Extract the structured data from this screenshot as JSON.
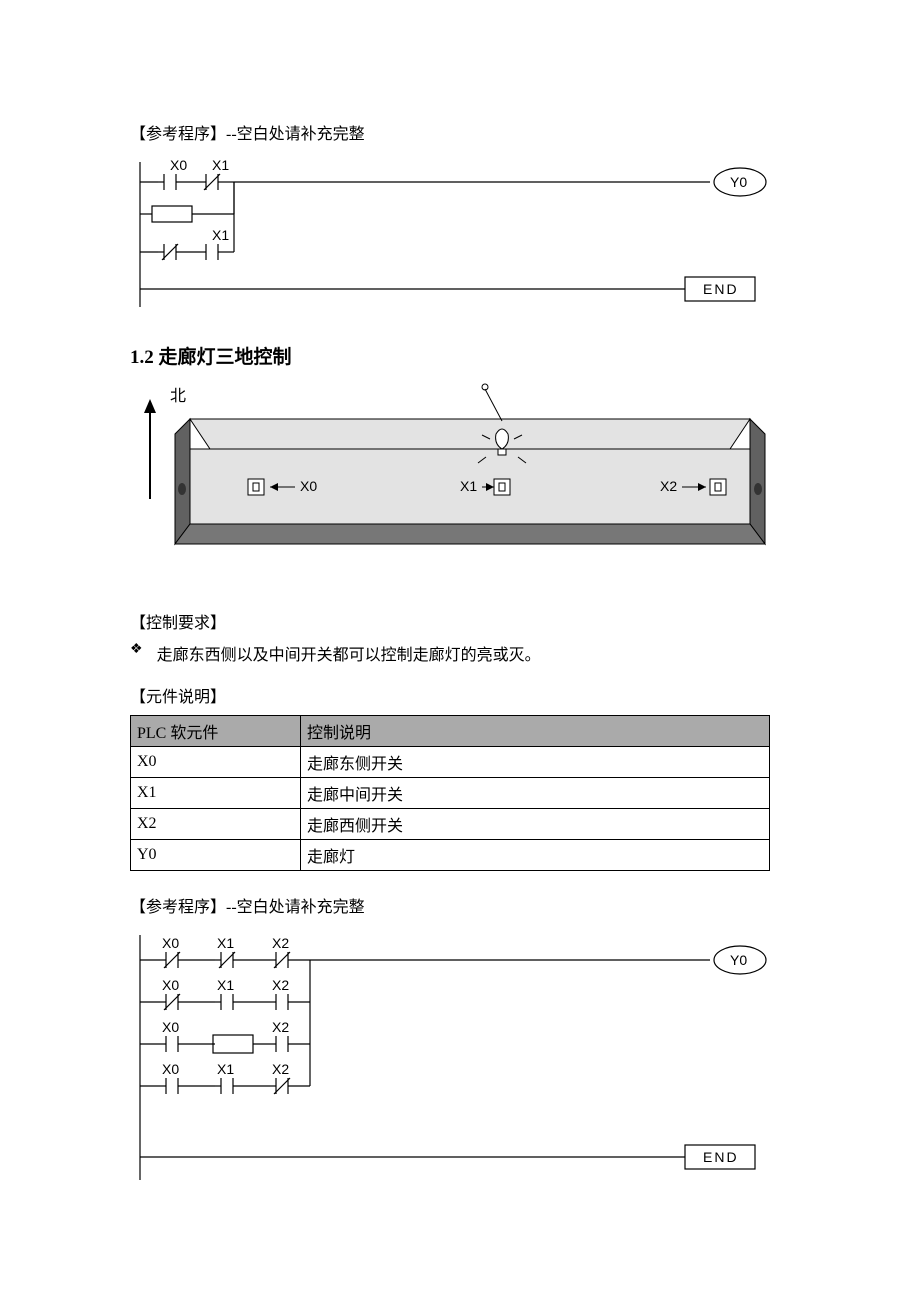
{
  "section1": {
    "program_label": "【参考程序】--空白处请补充完整",
    "ladder": {
      "contacts": [
        "X0",
        "X1",
        "X1"
      ],
      "output": "Y0",
      "end": "END"
    }
  },
  "section2": {
    "heading": "1.2 走廊灯三地控制",
    "north_label": "北",
    "switches": [
      "X0",
      "X1",
      "X2"
    ],
    "control_req_label": "【控制要求】",
    "control_req_text": "走廊东西侧以及中间开关都可以控制走廊灯的亮或灭。",
    "component_label": "【元件说明】",
    "table": {
      "headers": [
        "PLC 软元件",
        "控制说明"
      ],
      "rows": [
        [
          "X0",
          "走廊东侧开关"
        ],
        [
          "X1",
          "走廊中间开关"
        ],
        [
          "X2",
          "走廊西侧开关"
        ],
        [
          "Y0",
          "走廊灯"
        ]
      ]
    },
    "program_label": "【参考程序】--空白处请补充完整",
    "ladder": {
      "rows": [
        [
          {
            "t": "X0",
            "nc": true
          },
          {
            "t": "X1",
            "nc": true
          },
          {
            "t": "X2",
            "nc": true
          }
        ],
        [
          {
            "t": "X0",
            "nc": true
          },
          {
            "t": "X1",
            "nc": false
          },
          {
            "t": "X2",
            "nc": false
          }
        ],
        [
          {
            "t": "X0",
            "nc": false
          },
          {
            "t": "",
            "blank": true
          },
          {
            "t": "X2",
            "nc": false
          }
        ],
        [
          {
            "t": "X0",
            "nc": false
          },
          {
            "t": "X1",
            "nc": false
          },
          {
            "t": "X2",
            "nc": true
          }
        ]
      ],
      "output": "Y0",
      "end": "END"
    }
  },
  "colors": {
    "text": "#000000",
    "stroke": "#000000",
    "corridor_wall": "#e3e3e3",
    "corridor_floor": "#777777",
    "corridor_side": "#616161",
    "table_header_bg": "#aaaaaa"
  }
}
